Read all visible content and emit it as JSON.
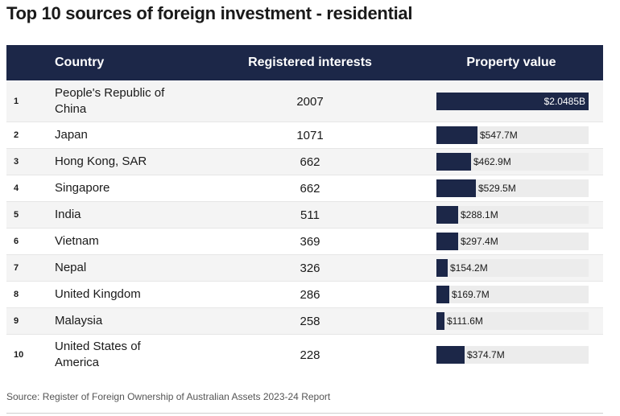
{
  "title": "Top 10 sources of foreign investment - residential",
  "headers": {
    "country": "Country",
    "registered": "Registered interests",
    "property": "Property value"
  },
  "source": "Source: Register of Foreign Ownership of Australian Assets 2023-24 Report",
  "colors": {
    "header_bg": "#1c2748",
    "bar": "#1c2748",
    "bar_track": "#ececec"
  },
  "chart_data": {
    "type": "table",
    "columns": [
      "",
      "Country",
      "Registered interests",
      "Property value"
    ],
    "rows": [
      {
        "rank": "1",
        "country": "People's Republic of China",
        "country_lines": [
          "People's Republic of",
          "China"
        ],
        "registered": "2007",
        "value": 2048.5,
        "value_label": "$2.0485B"
      },
      {
        "rank": "2",
        "country": "Japan",
        "country_lines": [
          "Japan"
        ],
        "registered": "1071",
        "value": 547.7,
        "value_label": "$547.7M"
      },
      {
        "rank": "3",
        "country": "Hong Kong, SAR",
        "country_lines": [
          "Hong Kong, SAR"
        ],
        "registered": "662",
        "value": 462.9,
        "value_label": "$462.9M"
      },
      {
        "rank": "4",
        "country": "Singapore",
        "country_lines": [
          "Singapore"
        ],
        "registered": "662",
        "value": 529.5,
        "value_label": "$529.5M"
      },
      {
        "rank": "5",
        "country": "India",
        "country_lines": [
          "India"
        ],
        "registered": "511",
        "value": 288.1,
        "value_label": "$288.1M"
      },
      {
        "rank": "6",
        "country": "Vietnam",
        "country_lines": [
          "Vietnam"
        ],
        "registered": "369",
        "value": 297.4,
        "value_label": "$297.4M"
      },
      {
        "rank": "7",
        "country": "Nepal",
        "country_lines": [
          "Nepal"
        ],
        "registered": "326",
        "value": 154.2,
        "value_label": "$154.2M"
      },
      {
        "rank": "8",
        "country": "United Kingdom",
        "country_lines": [
          "United Kingdom"
        ],
        "registered": "286",
        "value": 169.7,
        "value_label": "$169.7M"
      },
      {
        "rank": "9",
        "country": "Malaysia",
        "country_lines": [
          "Malaysia"
        ],
        "registered": "258",
        "value": 111.6,
        "value_label": "$111.6M"
      },
      {
        "rank": "10",
        "country": "United States of America",
        "country_lines": [
          "United States of",
          "America"
        ],
        "registered": "228",
        "value": 374.7,
        "value_label": "$374.7M"
      }
    ],
    "value_max": 2048.5
  }
}
